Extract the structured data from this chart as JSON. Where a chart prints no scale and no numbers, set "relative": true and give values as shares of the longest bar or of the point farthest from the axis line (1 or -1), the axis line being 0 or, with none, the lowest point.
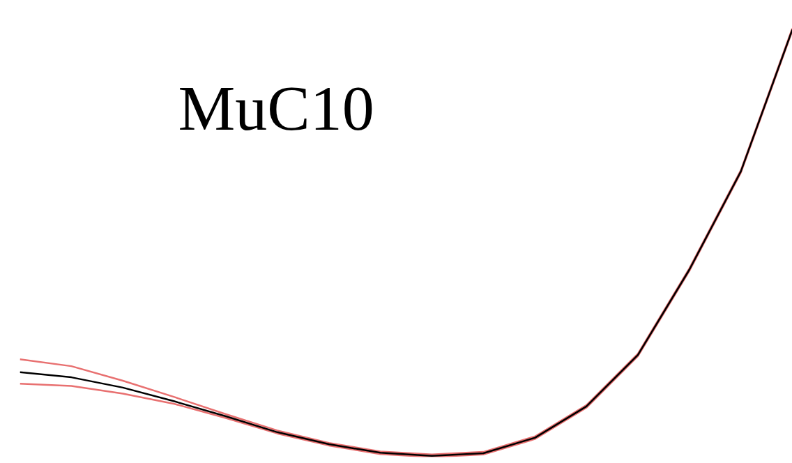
{
  "chart_data": {
    "type": "line",
    "title": "MuC10",
    "relative": true,
    "categories": [
      null,
      null,
      null,
      null,
      null,
      null,
      null,
      null,
      null,
      null,
      null,
      null,
      null,
      null,
      null,
      null
    ],
    "series": [
      {
        "color": "#e87070",
        "values": [
          0.171,
          0.166,
          0.148,
          0.124,
          0.091,
          0.055,
          0.027,
          0.007,
          0.0,
          0.006,
          0.042,
          0.115,
          0.235,
          0.434,
          0.663,
          0.994
        ]
      },
      {
        "color": "#e87070",
        "values": [
          0.228,
          0.212,
          0.178,
          0.14,
          0.1,
          0.062,
          0.033,
          0.013,
          0.006,
          0.012,
          0.048,
          0.121,
          0.241,
          0.44,
          0.669,
          1.0
        ]
      },
      {
        "color": "#000000",
        "values": [
          0.198,
          0.186,
          0.162,
          0.13,
          0.095,
          0.058,
          0.03,
          0.01,
          0.003,
          0.009,
          0.045,
          0.118,
          0.238,
          0.437,
          0.666,
          0.997
        ]
      }
    ]
  }
}
